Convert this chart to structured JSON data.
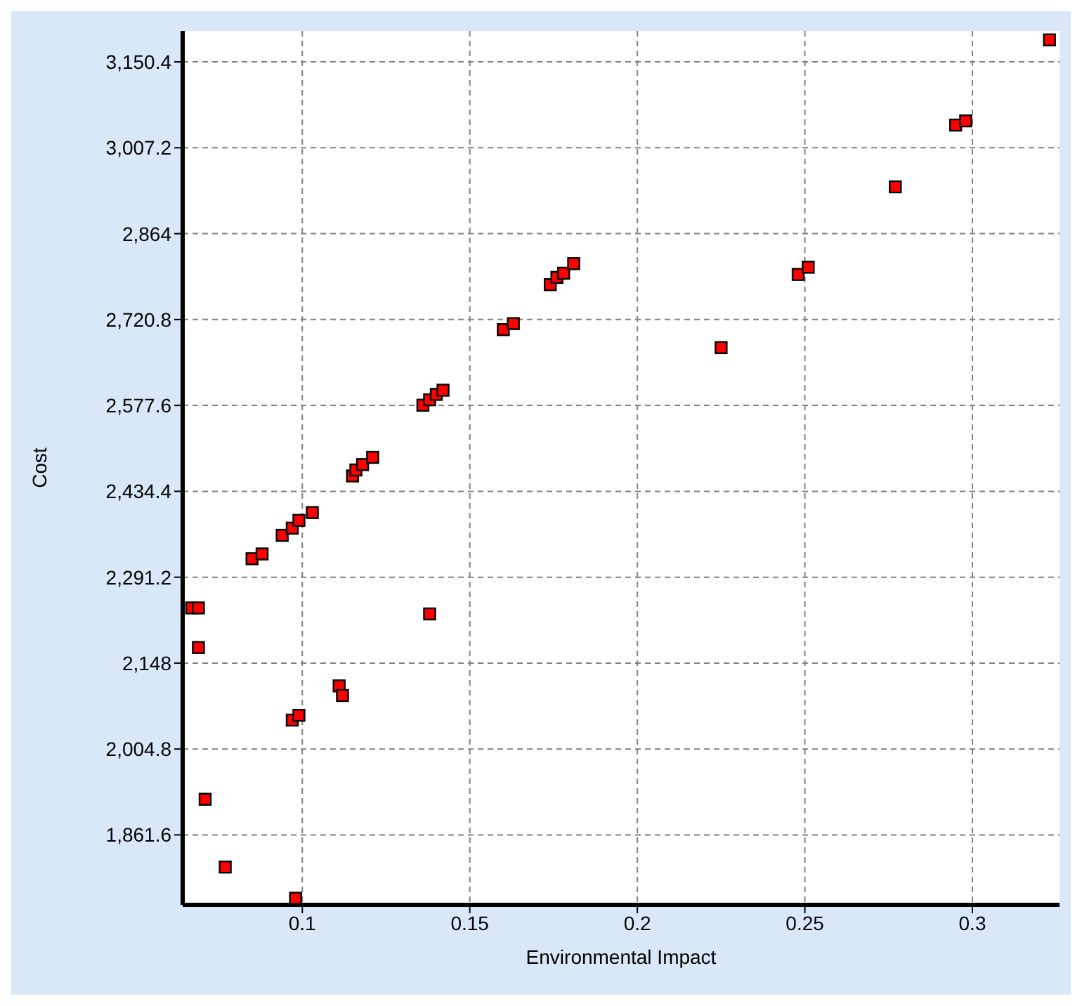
{
  "chart_data": {
    "type": "scatter",
    "xlabel": "Environmental Impact",
    "ylabel": "Cost",
    "marker": "square",
    "grid": true,
    "legend": false,
    "xlim": [
      0.0643,
      0.326
    ],
    "ylim": [
      1745,
      3202
    ],
    "xticks": [
      0.1,
      0.15,
      0.2,
      0.25,
      0.3
    ],
    "yticks": [
      {
        "value": 1861.6,
        "label": "1,861.6"
      },
      {
        "value": 2004.8,
        "label": "2,004.8"
      },
      {
        "value": 2148,
        "label": "2,148"
      },
      {
        "value": 2291.2,
        "label": "2,291.2"
      },
      {
        "value": 2434.4,
        "label": "2,434.4"
      },
      {
        "value": 2577.6,
        "label": "2,577.6"
      },
      {
        "value": 2720.8,
        "label": "2,720.8"
      },
      {
        "value": 2864,
        "label": "2,864"
      },
      {
        "value": 3007.2,
        "label": "3,007.2"
      },
      {
        "value": 3150.4,
        "label": "3,150.4"
      }
    ],
    "series": [
      {
        "color": "#ff0000",
        "x": [
          0.323,
          0.295,
          0.298,
          0.277,
          0.248,
          0.251,
          0.225,
          0.174,
          0.176,
          0.178,
          0.181,
          0.16,
          0.163,
          0.136,
          0.138,
          0.14,
          0.142,
          0.115,
          0.116,
          0.118,
          0.121,
          0.094,
          0.097,
          0.099,
          0.103,
          0.085,
          0.088,
          0.067,
          0.069,
          0.069,
          0.138,
          0.111,
          0.112,
          0.097,
          0.099,
          0.071,
          0.077,
          0.098
        ],
        "values": [
          3187,
          3045,
          3052,
          2942,
          2796,
          2808,
          2674,
          2779,
          2791,
          2798,
          2814,
          2704,
          2714,
          2578,
          2587,
          2596,
          2603,
          2460,
          2470,
          2479,
          2491,
          2361,
          2373,
          2386,
          2399,
          2322,
          2330,
          2240,
          2240,
          2174,
          2230,
          2110,
          2094,
          2053,
          2061,
          1921,
          1808,
          1756
        ]
      }
    ]
  }
}
